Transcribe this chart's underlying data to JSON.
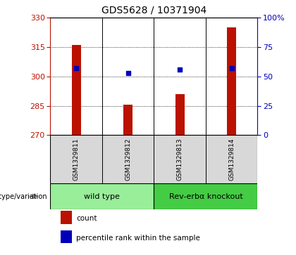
{
  "title": "GDS5628 / 10371904",
  "samples": [
    "GSM1329811",
    "GSM1329812",
    "GSM1329813",
    "GSM1329814"
  ],
  "count_values": [
    316.0,
    285.5,
    291.0,
    325.0
  ],
  "percentile_values": [
    57.0,
    53.0,
    56.0,
    57.0
  ],
  "ylim_left": [
    270,
    330
  ],
  "yticks_left": [
    270,
    285,
    300,
    315,
    330
  ],
  "ylim_right": [
    0,
    100
  ],
  "yticks_right": [
    0,
    25,
    50,
    75,
    100
  ],
  "bar_color": "#bb1100",
  "scatter_color": "#0000bb",
  "bar_bottom": 270,
  "bar_width": 0.18,
  "groups": [
    {
      "label": "wild type",
      "indices": [
        0,
        1
      ],
      "color": "#99ee99"
    },
    {
      "label": "Rev-erbα knockout",
      "indices": [
        2,
        3
      ],
      "color": "#44cc44"
    }
  ],
  "group_label": "genotype/variation",
  "legend_items": [
    {
      "color": "#bb1100",
      "label": "count",
      "marker": "square"
    },
    {
      "color": "#0000bb",
      "label": "percentile rank within the sample",
      "marker": "square"
    }
  ],
  "title_fontsize": 10,
  "tick_fontsize": 8,
  "sample_fontsize": 6.5,
  "group_fontsize": 8,
  "legend_fontsize": 7.5,
  "bg_color": "#d8d8d8"
}
